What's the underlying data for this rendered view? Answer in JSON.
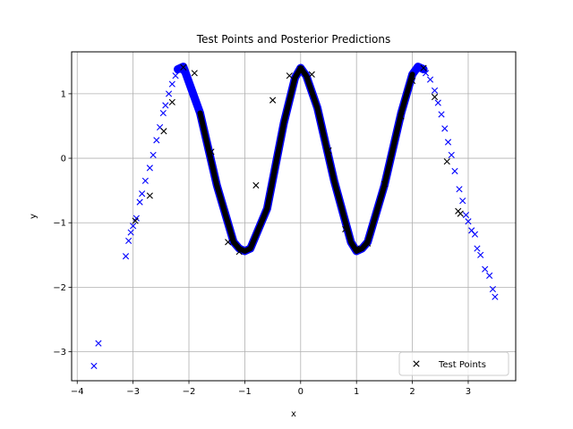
{
  "chart_data": {
    "type": "scatter",
    "title": "Test Points and Posterior Predictions",
    "xlabel": "x",
    "ylabel": "y",
    "xlim": [
      -4.1,
      3.85
    ],
    "ylim": [
      -3.45,
      1.65
    ],
    "xticks": [
      -4,
      -3,
      -2,
      -1,
      0,
      1,
      2,
      3
    ],
    "yticks": [
      -3,
      -2,
      -1,
      0,
      1
    ],
    "grid": true,
    "legend_position": "bottom-right",
    "legend": [
      {
        "label": "Test Points",
        "marker": "x",
        "color": "#000000"
      }
    ],
    "series": [
      {
        "name": "Test Points",
        "marker": "x",
        "color": "#000000",
        "x": [
          -2.96,
          -2.7,
          -2.45,
          -2.3,
          -2.1,
          -1.9,
          -1.6,
          -1.3,
          -1.1,
          -0.8,
          -0.5,
          -0.2,
          0.0,
          0.2,
          0.5,
          0.8,
          1.0,
          1.2,
          1.5,
          1.8,
          2.0,
          2.2,
          2.4,
          2.62,
          2.82,
          2.86
        ],
        "y": [
          -0.97,
          -0.58,
          0.42,
          0.87,
          1.41,
          1.32,
          0.1,
          -1.3,
          -1.45,
          -0.42,
          0.9,
          1.28,
          1.38,
          1.3,
          0.12,
          -1.1,
          -1.4,
          -1.32,
          -0.4,
          0.65,
          1.2,
          1.4,
          0.95,
          -0.05,
          -0.82,
          -0.86
        ]
      },
      {
        "name": "",
        "marker": "x",
        "color": "#0000ff",
        "x": [
          -3.7,
          -3.62,
          -3.13,
          -3.08,
          -3.04,
          -3.0,
          -2.94,
          -2.88,
          -2.84,
          -2.78,
          -2.7,
          -2.64,
          -2.58,
          -2.52,
          -2.46,
          -2.42,
          -2.36,
          -2.3,
          -2.24,
          -2.18,
          -2.12,
          2.16,
          2.24,
          2.32,
          2.4,
          2.46,
          2.52,
          2.58,
          2.64,
          2.7,
          2.76,
          2.84,
          2.9,
          2.96,
          3.0,
          3.06,
          3.12,
          3.16,
          3.22,
          3.3,
          3.38,
          3.44,
          3.48
        ],
        "y": [
          -3.22,
          -2.87,
          -1.52,
          -1.28,
          -1.15,
          -1.05,
          -0.93,
          -0.68,
          -0.55,
          -0.35,
          -0.15,
          0.05,
          0.28,
          0.48,
          0.7,
          0.82,
          1.0,
          1.15,
          1.28,
          1.36,
          1.41,
          1.4,
          1.32,
          1.22,
          1.05,
          0.86,
          0.68,
          0.46,
          0.25,
          0.05,
          -0.2,
          -0.48,
          -0.66,
          -0.88,
          -0.98,
          -1.12,
          -1.18,
          -1.4,
          -1.5,
          -1.72,
          -1.82,
          -2.03,
          -2.15
        ]
      },
      {
        "name": "",
        "type": "band",
        "color": "#0000ff",
        "x": [
          -2.2,
          -2.1,
          -1.8,
          -1.5,
          -1.2,
          -1.1,
          -1.0,
          -0.9,
          -0.6,
          -0.3,
          -0.1,
          0.0,
          0.1,
          0.3,
          0.6,
          0.9,
          1.0,
          1.1,
          1.2,
          1.5,
          1.8,
          2.0,
          2.1,
          2.2
        ],
        "y": [
          1.38,
          1.42,
          0.7,
          -0.42,
          -1.3,
          -1.4,
          -1.44,
          -1.4,
          -0.78,
          0.55,
          1.25,
          1.4,
          1.28,
          0.78,
          -0.35,
          -1.3,
          -1.44,
          -1.4,
          -1.3,
          -0.42,
          0.7,
          1.3,
          1.42,
          1.38
        ]
      }
    ]
  }
}
